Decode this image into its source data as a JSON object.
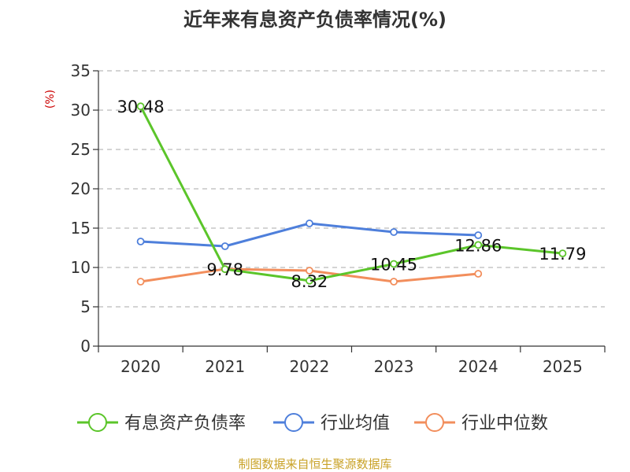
{
  "chart_data": {
    "type": "line",
    "title": "近年来有息资产负债率情况(%)",
    "ylabel": "(%)",
    "xlabel": "",
    "categories": [
      "2020",
      "2021",
      "2022",
      "2023",
      "2024",
      "2025"
    ],
    "ylim": [
      0,
      35
    ],
    "yticks": [
      0,
      5,
      10,
      15,
      20,
      25,
      30,
      35
    ],
    "grid": true,
    "legend_position": "bottom",
    "series": [
      {
        "name": "有息资产负债率",
        "color": "#5bc52a",
        "show_labels": true,
        "values": [
          30.48,
          9.78,
          8.32,
          10.45,
          12.86,
          11.79
        ]
      },
      {
        "name": "行业均值",
        "color": "#4e7fdb",
        "show_labels": false,
        "values": [
          13.3,
          12.7,
          15.6,
          14.5,
          14.1,
          null
        ]
      },
      {
        "name": "行业中位数",
        "color": "#f28e5c",
        "show_labels": false,
        "values": [
          8.2,
          9.8,
          9.6,
          8.2,
          9.2,
          null
        ]
      }
    ],
    "source": "制图数据来自恒生聚源数据库",
    "colors": {
      "axis": "#333333",
      "grid": "#bbbbbb",
      "ylabel": "#cc0000",
      "source": "#c9a227"
    }
  }
}
